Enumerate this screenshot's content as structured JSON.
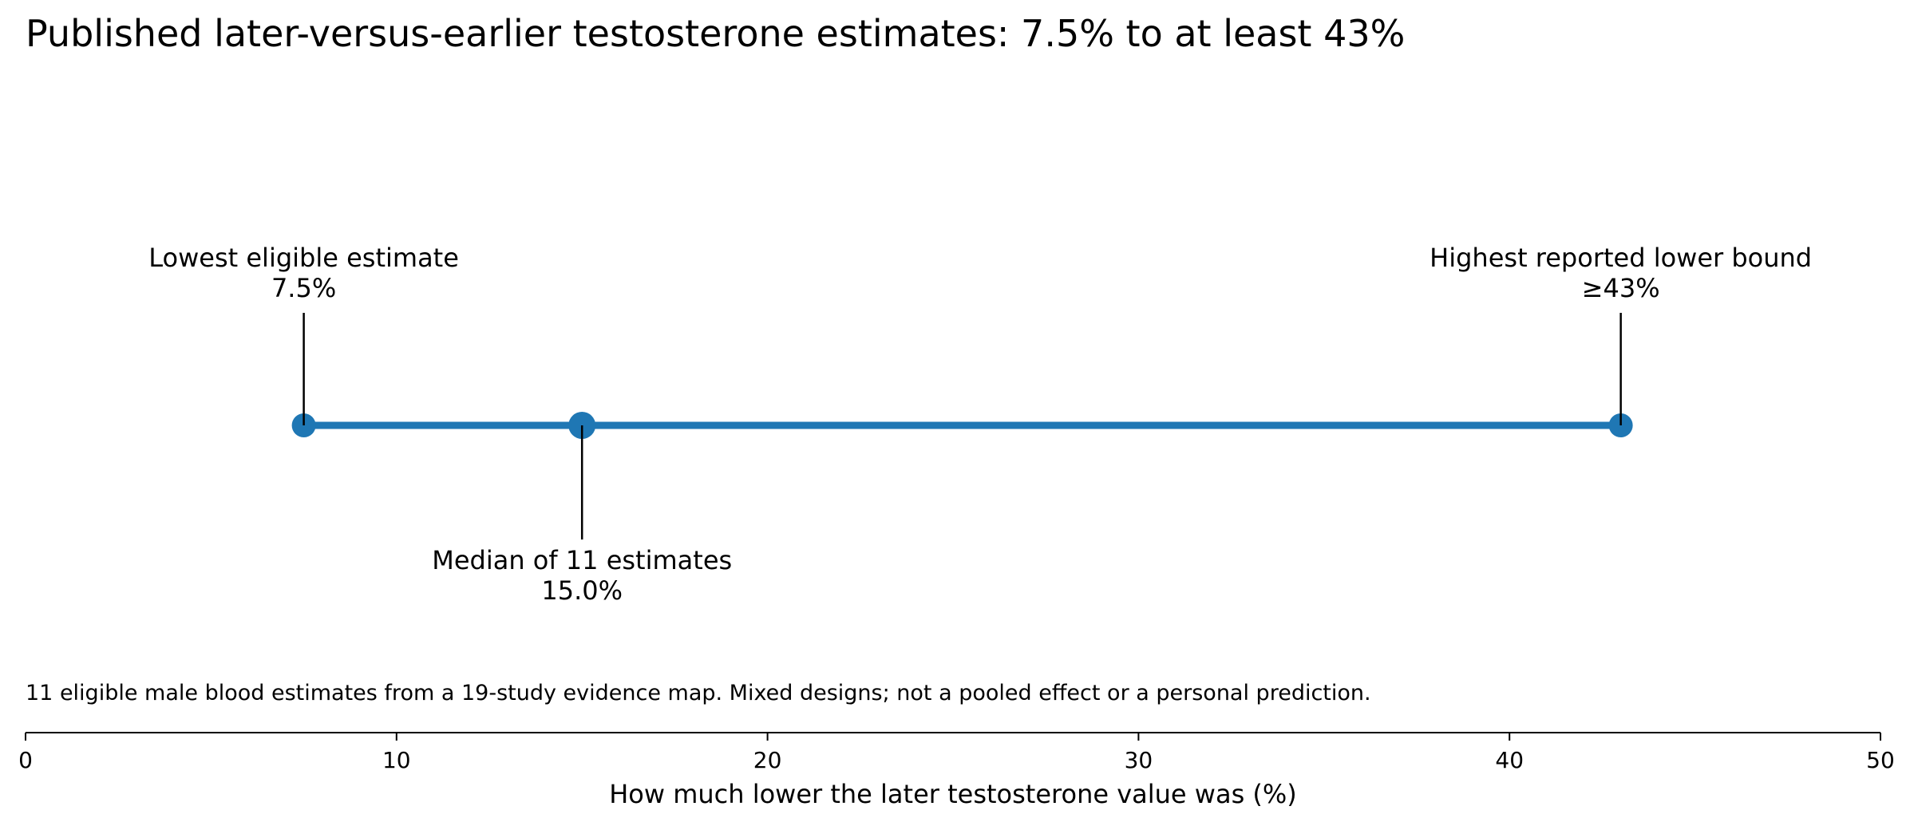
{
  "chart_data": {
    "type": "scatter",
    "title": "Published later-versus-earlier testosterone estimates: 7.5% to at least 43%",
    "xlabel": "How much lower the later testosterone value was (%)",
    "xlim": [
      0,
      50
    ],
    "xticks": [
      0,
      10,
      20,
      30,
      40,
      50
    ],
    "tick_labels": [
      "0",
      "10",
      "20",
      "30",
      "40",
      "50"
    ],
    "grid": false,
    "range": {
      "low": 7.5,
      "high": 43
    },
    "points": [
      {
        "id": "lowest",
        "x": 7.5,
        "label": "Lowest eligible estimate",
        "value_label": "7.5%",
        "label_position": "above"
      },
      {
        "id": "median",
        "x": 15.0,
        "label": "Median of 11 estimates",
        "value_label": "15.0%",
        "label_position": "below"
      },
      {
        "id": "highest",
        "x": 43,
        "label": "Highest reported lower bound",
        "value_label": "≥43%",
        "label_position": "above"
      }
    ],
    "note": "11 eligible male blood estimates from a 19-study evidence map. Mixed designs; not a pooled effect or a personal prediction.",
    "colors": {
      "series": "#1f77b4",
      "axis": "#000000"
    }
  }
}
